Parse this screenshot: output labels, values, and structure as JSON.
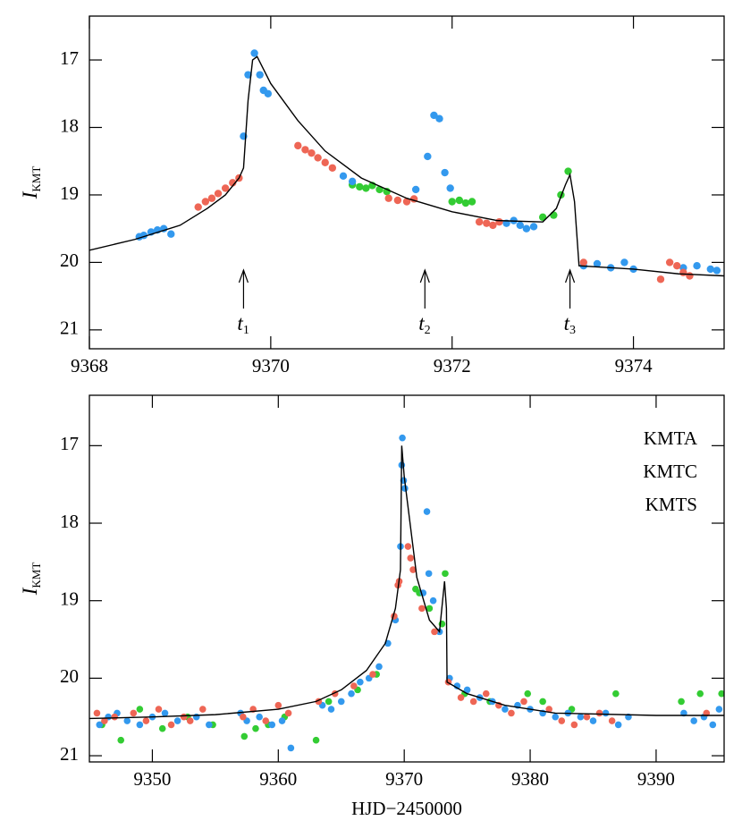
{
  "chart_data": [
    {
      "type": "scatter",
      "ylabel": "I",
      "ylabel_sub": "KMT",
      "xlim": [
        9368,
        9375
      ],
      "ylim": [
        16.35,
        21.28
      ],
      "y_inverted": true,
      "xticks": [
        9368,
        9370,
        9372,
        9374
      ],
      "yticks": [
        17,
        18,
        19,
        20,
        21
      ],
      "series": [
        {
          "color": "#33cc33",
          "x": [
            9370.9,
            9370.98,
            9371.05,
            9371.12,
            9371.2,
            9371.28,
            9372.0,
            9372.08,
            9372.15,
            9372.22,
            9373.0,
            9373.12,
            9373.2,
            9373.28
          ],
          "values": [
            18.85,
            18.88,
            18.9,
            18.86,
            18.92,
            18.95,
            19.1,
            19.08,
            19.12,
            19.1,
            19.33,
            19.3,
            19.0,
            18.65
          ]
        },
        {
          "color": "#3399ee",
          "x": [
            9368.55,
            9368.6,
            9368.68,
            9368.75,
            9368.82,
            9368.9,
            9369.7,
            9369.75,
            9369.82,
            9369.88,
            9369.92,
            9369.97,
            9370.8,
            9370.9,
            9371.6,
            9371.73,
            9371.8,
            9371.86,
            9371.92,
            9371.98,
            9372.6,
            9372.68,
            9372.75,
            9372.82,
            9372.9,
            9373.45,
            9373.6,
            9373.75,
            9373.9,
            9374.0,
            9374.55,
            9374.7,
            9374.85,
            9374.92
          ],
          "values": [
            19.62,
            19.6,
            19.55,
            19.52,
            19.5,
            19.58,
            18.13,
            17.22,
            16.9,
            17.22,
            17.45,
            17.5,
            18.72,
            18.8,
            18.92,
            18.43,
            17.82,
            17.87,
            18.67,
            18.9,
            19.42,
            19.38,
            19.45,
            19.5,
            19.47,
            20.05,
            20.02,
            20.08,
            20.0,
            20.1,
            20.08,
            20.05,
            20.1,
            20.12
          ]
        },
        {
          "color": "#ee6655",
          "x": [
            9369.2,
            9369.28,
            9369.35,
            9369.42,
            9369.5,
            9369.58,
            9369.65,
            9370.3,
            9370.38,
            9370.45,
            9370.52,
            9370.6,
            9370.68,
            9371.3,
            9371.4,
            9371.5,
            9371.58,
            9372.3,
            9372.38,
            9372.45,
            9372.52,
            9373.45,
            9374.3,
            9374.4,
            9374.48,
            9374.55,
            9374.62
          ],
          "values": [
            19.18,
            19.1,
            19.05,
            18.98,
            18.9,
            18.82,
            18.75,
            18.27,
            18.33,
            18.38,
            18.45,
            18.52,
            18.6,
            19.05,
            19.08,
            19.1,
            19.06,
            19.4,
            19.42,
            19.45,
            19.4,
            20.0,
            20.25,
            20.0,
            20.05,
            20.15,
            20.2
          ]
        }
      ],
      "model": {
        "color": "#000000",
        "x": [
          9368,
          9368.5,
          9369,
          9369.3,
          9369.5,
          9369.65,
          9369.7,
          9369.75,
          9369.8,
          9369.85,
          9370,
          9370.3,
          9370.6,
          9371,
          9371.5,
          9372,
          9372.5,
          9373,
          9373.15,
          9373.25,
          9373.3,
          9373.35,
          9373.4,
          9374,
          9374.5,
          9375
        ],
        "values": [
          19.82,
          19.66,
          19.45,
          19.2,
          19.0,
          18.75,
          18.6,
          17.6,
          17.0,
          16.95,
          17.35,
          17.9,
          18.35,
          18.75,
          19.05,
          19.25,
          19.38,
          19.4,
          19.2,
          18.85,
          18.7,
          19.1,
          20.05,
          20.1,
          20.17,
          20.2
        ]
      },
      "annotations": [
        {
          "text": "t",
          "sub": "1",
          "x": 9369.7
        },
        {
          "text": "t",
          "sub": "2",
          "x": 9371.7
        },
        {
          "text": "t",
          "sub": "3",
          "x": 9373.3
        }
      ]
    },
    {
      "type": "scatter",
      "ylabel": "I",
      "ylabel_sub": "KMT",
      "xlabel": "HJD−2450000",
      "xlim": [
        9345,
        9395.4
      ],
      "ylim": [
        16.35,
        21.08
      ],
      "y_inverted": true,
      "xticks": [
        9350,
        9360,
        9370,
        9380,
        9390
      ],
      "yticks": [
        17,
        18,
        19,
        20,
        21
      ],
      "legend": "upper right",
      "series": [
        {
          "name": "KMTA",
          "color": "#33cc33",
          "x": [
            9346,
            9347.5,
            9349,
            9350.8,
            9352.8,
            9354.8,
            9357.3,
            9358.2,
            9359.2,
            9360.5,
            9363,
            9364,
            9366.3,
            9367.8,
            9370.9,
            9371.2,
            9372,
            9373,
            9373.25,
            9374.8,
            9376.8,
            9379.8,
            9381,
            9383.3,
            9386.8,
            9392,
            9393.5,
            9395.2
          ],
          "values": [
            20.6,
            20.8,
            20.4,
            20.65,
            20.5,
            20.6,
            20.75,
            20.65,
            20.6,
            20.5,
            20.8,
            20.3,
            20.15,
            19.95,
            18.85,
            18.9,
            19.1,
            19.3,
            18.65,
            20.2,
            20.3,
            20.2,
            20.3,
            20.4,
            20.2,
            20.3,
            20.2,
            20.2
          ]
        },
        {
          "name": "KMTC",
          "color": "#3399ee",
          "x": [
            9345.8,
            9346.5,
            9347.2,
            9348,
            9349,
            9350,
            9351,
            9352,
            9353.5,
            9354.5,
            9357,
            9357.5,
            9358.5,
            9359.5,
            9360.3,
            9361,
            9363.5,
            9364.2,
            9365,
            9365.8,
            9366.5,
            9367.2,
            9368,
            9368.7,
            9369.3,
            9369.7,
            9369.8,
            9369.85,
            9369.95,
            9370.05,
            9371.5,
            9371.8,
            9371.95,
            9372.3,
            9372.8,
            9373.6,
            9374.2,
            9375,
            9376,
            9377,
            9378,
            9379,
            9380,
            9381,
            9382,
            9383,
            9384,
            9385,
            9386,
            9387,
            9387.8,
            9392.2,
            9393,
            9393.8,
            9394.5,
            9395
          ],
          "values": [
            20.6,
            20.5,
            20.45,
            20.55,
            20.6,
            20.5,
            20.45,
            20.55,
            20.5,
            20.6,
            20.45,
            20.55,
            20.5,
            20.6,
            20.55,
            20.9,
            20.35,
            20.4,
            20.3,
            20.2,
            20.05,
            20.0,
            19.85,
            19.55,
            19.25,
            18.3,
            17.25,
            16.9,
            17.45,
            17.55,
            18.9,
            17.85,
            18.65,
            19.0,
            19.4,
            20.0,
            20.1,
            20.15,
            20.25,
            20.3,
            20.4,
            20.35,
            20.4,
            20.45,
            20.5,
            20.45,
            20.5,
            20.55,
            20.45,
            20.6,
            20.5,
            20.45,
            20.55,
            20.5,
            20.6,
            20.4
          ]
        },
        {
          "name": "KMTS",
          "color": "#ee6655",
          "x": [
            9345.6,
            9346.2,
            9347,
            9348.5,
            9349.5,
            9350.5,
            9351.5,
            9352.5,
            9353,
            9354,
            9357.2,
            9358,
            9359,
            9360,
            9360.8,
            9363.2,
            9364.5,
            9366,
            9367.5,
            9369.2,
            9369.5,
            9369.6,
            9370.3,
            9370.5,
            9370.7,
            9371.4,
            9372.4,
            9373.5,
            9374.5,
            9375.5,
            9376.5,
            9377.5,
            9378.5,
            9379.5,
            9381.5,
            9382.5,
            9383.5,
            9384.5,
            9385.5,
            9386.5,
            9394
          ],
          "values": [
            20.45,
            20.55,
            20.5,
            20.45,
            20.55,
            20.4,
            20.6,
            20.5,
            20.55,
            20.4,
            20.5,
            20.4,
            20.55,
            20.35,
            20.45,
            20.3,
            20.2,
            20.1,
            19.95,
            19.2,
            18.8,
            18.75,
            18.3,
            18.45,
            18.6,
            19.1,
            19.4,
            20.05,
            20.25,
            20.3,
            20.2,
            20.35,
            20.45,
            20.3,
            20.4,
            20.55,
            20.6,
            20.5,
            20.45,
            20.55,
            20.45
          ]
        }
      ],
      "model": {
        "color": "#000000",
        "x": [
          9345,
          9350,
          9355,
          9360,
          9363,
          9365,
          9367,
          9368.5,
          9369.3,
          9369.7,
          9369.8,
          9370,
          9371,
          9372,
          9372.8,
          9373.2,
          9373.35,
          9373.4,
          9375,
          9378,
          9382,
          9390,
          9395.4
        ],
        "values": [
          20.52,
          20.5,
          20.47,
          20.4,
          20.3,
          20.15,
          19.9,
          19.55,
          19.1,
          18.6,
          17.0,
          17.4,
          18.7,
          19.25,
          19.4,
          18.75,
          19.1,
          20.05,
          20.2,
          20.35,
          20.45,
          20.48,
          20.48
        ]
      }
    }
  ]
}
